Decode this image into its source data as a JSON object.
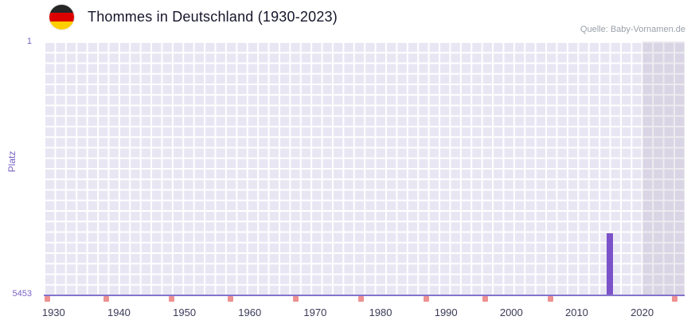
{
  "header": {
    "title": "Thommes in Deutschland (1930-2023)",
    "source": "Quelle: Baby-Vornamen.de",
    "flag_icon": "german-flag",
    "flag_colors": [
      "#262626",
      "#dd0000",
      "#ffce00"
    ]
  },
  "chart_data": {
    "type": "bar",
    "title": "Thommes in Deutschland (1930-2023)",
    "source": "Quelle: Baby-Vornamen.de",
    "xlabel": "",
    "ylabel": "Platz",
    "y_axis": {
      "min": 1,
      "max": 5453,
      "inverted": true,
      "top_label": "1",
      "bottom_label": "5453"
    },
    "x_domain": [
      1928.5,
      2026.5
    ],
    "x_ticks": [
      1930,
      1940,
      1950,
      1960,
      1970,
      1980,
      1990,
      2000,
      2010,
      2020
    ],
    "series": [
      {
        "name": "Platz",
        "color": "#7b52c9",
        "points": [
          {
            "year": 2015,
            "rank": 4133
          }
        ]
      }
    ],
    "unranked_markers": {
      "color": "#ee9191",
      "years": [
        1929,
        1938,
        1948,
        1957,
        1967,
        1977,
        1987,
        1996,
        2006,
        2025
      ]
    },
    "highlight_region": {
      "from_year": 2020,
      "to_year": 2026.5,
      "color": "rgba(118,112,145,0.14)"
    },
    "colors": {
      "plot_bg": "#e9e6f4",
      "grid_line": "#ffffff",
      "axis_line": "#8273cc",
      "y_tick_label": "#7a63c4",
      "x_tick_label": "#3b3b58"
    },
    "legend": {
      "visible": false
    },
    "grid": true
  }
}
